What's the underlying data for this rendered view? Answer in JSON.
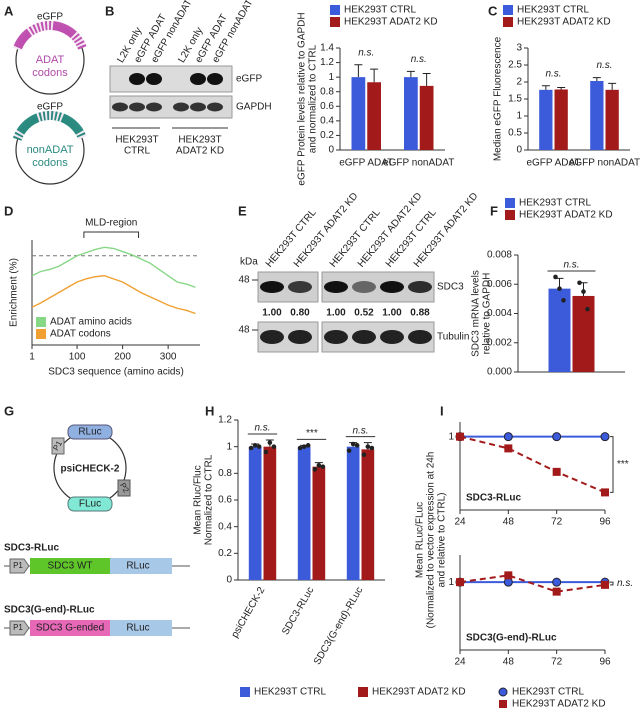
{
  "panel_labels": [
    "A",
    "B",
    "C",
    "D",
    "E",
    "F",
    "G",
    "H",
    "I"
  ],
  "panel_a": {
    "plasmids": [
      {
        "gene": "eGFP",
        "codons": [
          "ADAT",
          "codons"
        ]
      },
      {
        "gene": "eGFP",
        "codons": [
          "nonADAT",
          "codons"
        ]
      }
    ]
  },
  "blot_b": {
    "lanes": [
      "L2K only",
      "eGFP ADAT",
      "eGFP nonADAT",
      "L2K only",
      "eGFP ADAT",
      "eGFP nonADAT"
    ],
    "bands": [
      "eGFP",
      "GAPDH"
    ],
    "groups": [
      [
        "HEK293T",
        "CTRL"
      ],
      [
        "HEK293T",
        "ADAT2 KD"
      ]
    ]
  },
  "blot_e": {
    "unit": "kDa",
    "markers": [
      48,
      48
    ],
    "lanes": [
      "HEK293T CTRL",
      "HEK293T ADAT2 KD",
      "HEK293T CTRL",
      "HEK293T ADAT2 KD",
      "HEK293T CTRL",
      "HEK293T ADAT2 KD"
    ],
    "bands": [
      "SDC3",
      "Tubulin"
    ],
    "quantification": [
      "1.00",
      "0.80",
      "1.00",
      "0.52",
      "1.00",
      "0.88"
    ]
  },
  "panel_g": {
    "plasmid": "psiCHECK-2",
    "features": [
      "RLuc",
      "FLuc",
      "P1",
      "P2"
    ],
    "constructs": [
      {
        "name": "SDC3-RLuc",
        "parts": [
          "P1",
          "SDC3 WT",
          "RLuc"
        ]
      },
      {
        "name": "SDC3(G-end)-RLuc",
        "parts": [
          "P1",
          "SDC3 G-ended",
          "RLuc"
        ]
      }
    ]
  },
  "chart_data": [
    {
      "type": "bar",
      "ylabel": [
        "eGFP Protein levels relative to GAPDH",
        "and normalized to CTRL"
      ],
      "categories": [
        "eGFP ADAT",
        "eGFP nonADAT"
      ],
      "series": [
        {
          "name": "HEK293T CTRL",
          "color": "#3b5bdb",
          "values": [
            1.0,
            1.0
          ],
          "errors": [
            0.17,
            0.08
          ]
        },
        {
          "name": "HEK293T ADAT2 KD",
          "color": "#a31a1a",
          "values": [
            0.93,
            0.88
          ],
          "errors": [
            0.18,
            0.17
          ]
        }
      ],
      "annotations": [
        "n.s.",
        "n.s."
      ],
      "ylim": [
        0,
        1.4
      ],
      "yticks": [
        0,
        0.2,
        0.4,
        0.6,
        0.8,
        1,
        1.2,
        1.4
      ],
      "legend": "top"
    },
    {
      "type": "bar",
      "ylabel": [
        "Median eGFP Fluorescence"
      ],
      "categories": [
        "eGFP ADAT",
        "eGFP nonADAT"
      ],
      "series": [
        {
          "name": "HEK293T CTRL",
          "color": "#3b5bdb",
          "values": [
            1.77,
            2.03
          ],
          "errors": [
            0.12,
            0.1
          ]
        },
        {
          "name": "HEK293T ADAT2 KD",
          "color": "#a31a1a",
          "values": [
            1.78,
            1.77
          ],
          "errors": [
            0.06,
            0.19
          ]
        }
      ],
      "annotations": [
        "n.s.",
        "n.s."
      ],
      "ylim": [
        0,
        3
      ],
      "yticks": [
        0,
        0.5,
        1,
        1.5,
        2,
        2.5,
        3
      ],
      "legend": "top"
    },
    {
      "type": "line",
      "ylabel": [
        "Enrichment (%)"
      ],
      "xlabel": "SDC3 sequence (amino acids)",
      "x": [
        1,
        20,
        40,
        60,
        80,
        100,
        120,
        140,
        160,
        180,
        200,
        220,
        240,
        260,
        280,
        300,
        320,
        340,
        360
      ],
      "series": [
        {
          "name": "ADAT amino acids",
          "color": "#86d886",
          "values": [
            66,
            70,
            72,
            75,
            80,
            85,
            88,
            91,
            93,
            92,
            89,
            86,
            82,
            78,
            72,
            66,
            60,
            58,
            55
          ]
        },
        {
          "name": "ADAT codons",
          "color": "#f0a030",
          "values": [
            36,
            40,
            45,
            50,
            55,
            60,
            63,
            65,
            66,
            63,
            60,
            55,
            50,
            46,
            42,
            38,
            35,
            33,
            30
          ]
        }
      ],
      "xlim": [
        1,
        370
      ],
      "xticks": [
        1,
        100,
        200,
        300
      ],
      "ylim": [
        0,
        100
      ],
      "ref_line": 85,
      "region": {
        "label": "MLD-region",
        "start": 115,
        "end": 235
      },
      "legend": "inside"
    },
    {
      "type": "bar",
      "ylabel": [
        "SDC3 mRNA levels",
        "relative to GAPDH"
      ],
      "categories": [
        null
      ],
      "series": [
        {
          "name": "HEK293T CTRL",
          "color": "#3b5bdb",
          "values": [
            0.0057
          ],
          "errors": [
            0.0007
          ],
          "points": [
            [
              0.0065,
              0.0057,
              0.0049
            ]
          ]
        },
        {
          "name": "HEK293T ADAT2 KD",
          "color": "#a31a1a",
          "values": [
            0.0052
          ],
          "errors": [
            0.0009
          ],
          "points": [
            [
              0.0061,
              0.0055,
              0.0043
            ]
          ]
        }
      ],
      "annotations": [
        "n.s."
      ],
      "ylim": [
        0,
        0.008
      ],
      "yticks": [
        {
          "value": 0,
          "label": "0.000"
        },
        {
          "value": 0.002,
          "label": "0.002"
        },
        {
          "value": 0.004,
          "label": "0.004"
        },
        {
          "value": 0.006,
          "label": "0.006"
        },
        {
          "value": 0.008,
          "label": "0.008"
        }
      ],
      "legend": "top"
    },
    {
      "type": "bar",
      "ylabel": [
        "Mean Rluc/Fluc",
        "Normalized to CTRL"
      ],
      "categories": [
        "psiCHECK-2",
        "SDC3-RLuc",
        "SDC3(G-end)-RLuc"
      ],
      "series": [
        {
          "name": "HEK293T CTRL",
          "color": "#3b5bdb",
          "values": [
            1.0,
            1.0,
            1.0
          ],
          "errors": [
            0.02,
            0.01,
            0.03
          ],
          "points": [
            [
              0.99,
              1.01,
              1.0
            ],
            [
              0.99,
              1.0,
              1.01
            ],
            [
              0.97,
              1.02,
              1.01
            ]
          ]
        },
        {
          "name": "HEK293T ADAT2 KD",
          "color": "#a31a1a",
          "values": [
            1.0,
            0.85,
            0.98
          ],
          "errors": [
            0.05,
            0.03,
            0.05
          ],
          "points": [
            [
              0.96,
              1.03,
              1.0
            ],
            [
              0.83,
              0.86,
              0.85
            ],
            [
              0.94,
              1.0,
              0.99
            ]
          ]
        }
      ],
      "annotations": [
        "n.s.",
        "***",
        "n.s."
      ],
      "ylim": [
        0,
        1.2
      ],
      "yticks": [
        0,
        0.2,
        0.4,
        0.6,
        0.8,
        1,
        1.2
      ],
      "legend": "bottom"
    },
    {
      "type": "line",
      "title": "SDC3-RLuc",
      "ylabel": [
        "Mean RLuc/FLuc",
        "(Normalized to vector expression at 24h",
        "and relative to CTRL)"
      ],
      "x": [
        24,
        48,
        72,
        96
      ],
      "series": [
        {
          "color": "#3b5bdb",
          "marker": "circle",
          "values": [
            1,
            1,
            1,
            1
          ]
        },
        {
          "color": "#a31a1a",
          "marker": "square",
          "dash": true,
          "values": [
            1,
            0.92,
            0.76,
            0.62
          ]
        }
      ],
      "xlim": [
        24,
        96
      ],
      "xticks": [
        24,
        48,
        72,
        96
      ],
      "ylim": [
        0.5,
        1.1
      ],
      "yticks": [
        1
      ],
      "annotation": "***"
    },
    {
      "type": "line",
      "title": "SDC3(G-end)-RLuc",
      "x": [
        24,
        48,
        72,
        96
      ],
      "series": [
        {
          "name": "HEK293T CTRL",
          "color": "#3b5bdb",
          "marker": "circle",
          "values": [
            1,
            1,
            1,
            1
          ]
        },
        {
          "name": "HEK293T ADAT2 KD",
          "color": "#a31a1a",
          "marker": "square",
          "dash": true,
          "values": [
            1,
            1.05,
            0.93,
            0.98
          ]
        }
      ],
      "xlim": [
        24,
        96
      ],
      "xticks": [
        24,
        48,
        72,
        96
      ],
      "ylim": [
        0.5,
        1.2
      ],
      "yticks": [
        1
      ],
      "annotation": "n.s.",
      "legend": "bottom"
    }
  ]
}
